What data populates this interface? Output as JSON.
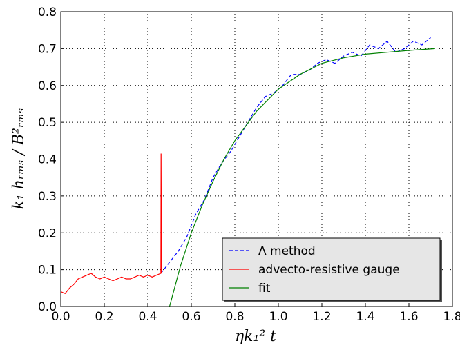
{
  "chart_data": {
    "type": "line",
    "xlabel": "ηk₁² t",
    "ylabel": "k₁ hᵣₘₛ / B²ᵣₘₛ",
    "xlim": [
      0,
      1.8
    ],
    "ylim": [
      0,
      0.8
    ],
    "xticks": [
      {
        "value": 0,
        "label": "0.0"
      },
      0.2,
      0.4,
      0.6,
      0.8,
      {
        "value": 1,
        "label": "1.0"
      },
      1.2,
      1.4,
      1.6,
      1.8
    ],
    "yticks": [
      {
        "value": 0,
        "label": "0.0"
      },
      0.1,
      0.2,
      0.3,
      0.4,
      0.5,
      0.6,
      0.7,
      0.8
    ],
    "grid": true,
    "legend": "lower right",
    "series": [
      {
        "name": "Λ method",
        "color": "#0000ff",
        "style": "dashed",
        "x": [
          0.46,
          0.5,
          0.54,
          0.58,
          0.62,
          0.66,
          0.7,
          0.74,
          0.78,
          0.82,
          0.86,
          0.9,
          0.94,
          0.98,
          1.02,
          1.06,
          1.1,
          1.14,
          1.18,
          1.22,
          1.26,
          1.3,
          1.34,
          1.38,
          1.42,
          1.46,
          1.5,
          1.54,
          1.58,
          1.62,
          1.66,
          1.7
        ],
        "values": [
          0.09,
          0.12,
          0.15,
          0.19,
          0.25,
          0.29,
          0.35,
          0.39,
          0.42,
          0.46,
          0.5,
          0.54,
          0.57,
          0.58,
          0.6,
          0.63,
          0.63,
          0.64,
          0.66,
          0.67,
          0.66,
          0.68,
          0.69,
          0.68,
          0.71,
          0.7,
          0.72,
          0.69,
          0.7,
          0.72,
          0.71,
          0.73
        ]
      },
      {
        "name": "advecto-resistive gauge",
        "color": "#ff0000",
        "style": "solid",
        "x": [
          0,
          0.02,
          0.04,
          0.06,
          0.08,
          0.1,
          0.12,
          0.14,
          0.16,
          0.18,
          0.2,
          0.22,
          0.24,
          0.26,
          0.28,
          0.3,
          0.32,
          0.34,
          0.36,
          0.38,
          0.4,
          0.42,
          0.44,
          0.46,
          0.461,
          0.463
        ],
        "values": [
          0.04,
          0.035,
          0.05,
          0.06,
          0.075,
          0.08,
          0.085,
          0.09,
          0.08,
          0.075,
          0.08,
          0.075,
          0.07,
          0.075,
          0.08,
          0.075,
          0.075,
          0.08,
          0.085,
          0.08,
          0.085,
          0.08,
          0.085,
          0.09,
          0.415,
          0.09
        ]
      },
      {
        "name": "fit",
        "color": "#008000",
        "style": "solid",
        "x": [
          0.5,
          0.55,
          0.6,
          0.65,
          0.7,
          0.75,
          0.8,
          0.85,
          0.9,
          0.95,
          1.0,
          1.1,
          1.2,
          1.3,
          1.4,
          1.5,
          1.6,
          1.72
        ],
        "values": [
          0,
          0.11,
          0.2,
          0.275,
          0.34,
          0.4,
          0.45,
          0.49,
          0.53,
          0.56,
          0.59,
          0.63,
          0.66,
          0.675,
          0.685,
          0.69,
          0.695,
          0.7
        ]
      }
    ]
  }
}
